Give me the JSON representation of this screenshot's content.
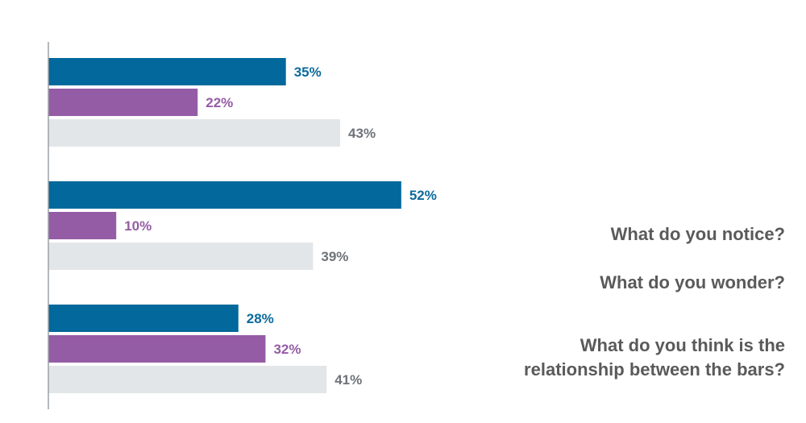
{
  "chart_data": {
    "type": "bar",
    "orientation": "horizontal",
    "groups": [
      {
        "values": [
          35,
          22,
          43
        ],
        "labels": [
          "35%",
          "22%",
          "43%"
        ]
      },
      {
        "values": [
          52,
          10,
          39
        ],
        "labels": [
          "52%",
          "10%",
          "39%"
        ]
      },
      {
        "values": [
          28,
          32,
          41
        ],
        "labels": [
          "28%",
          "32%",
          "41%"
        ]
      }
    ],
    "series_colors": [
      "#03689b",
      "#955ca6",
      "#e3e6e9"
    ],
    "label_colors": [
      "#0b6a9d",
      "#955ca6",
      "#6e7378"
    ],
    "xlim": [
      0,
      100
    ],
    "grid": false,
    "legend": "none"
  },
  "questions": {
    "notice": "What do you notice?",
    "wonder": "What do you wonder?",
    "relationship_line1": "What do you think is the",
    "relationship_line2": "relationship between the bars?"
  }
}
